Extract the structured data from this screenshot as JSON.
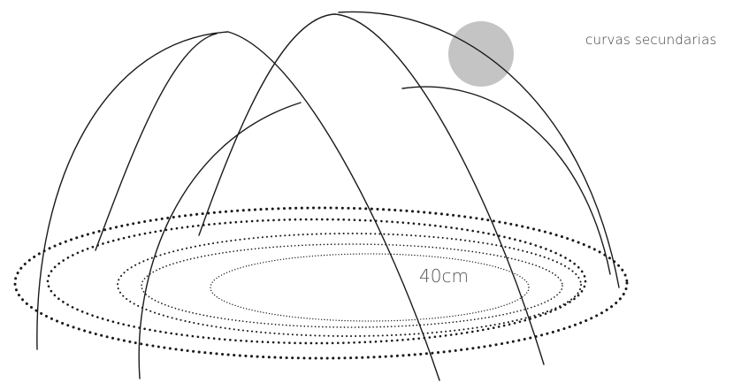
{
  "labels": {
    "secondary_curves": "curvas secundarias",
    "dimension": "40cm"
  },
  "colors": {
    "background": "#ffffff",
    "stroke": "#1a1a1a",
    "highlight_circle": "#c4c4c4",
    "label_text": "#3a3a3a"
  },
  "shapes": {
    "dotted_rings": 5,
    "main_arches": 4,
    "secondary_arches": 3,
    "highlight": "circle"
  }
}
